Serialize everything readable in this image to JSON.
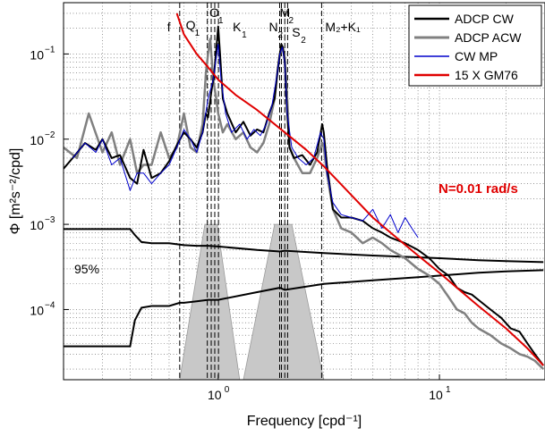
{
  "chart_data": {
    "type": "line",
    "xscale": "log",
    "yscale": "log",
    "xlim": [
      0.2,
      30
    ],
    "ylim": [
      1.5e-05,
      0.4
    ],
    "grid": true,
    "xlabel": "Frequency [cpd⁻¹]",
    "ylabel": "Φ [m²s⁻²/cpd]",
    "x_ticks": [
      {
        "value": 1,
        "label": "10",
        "exp": "0"
      },
      {
        "value": 10,
        "label": "10",
        "exp": "1"
      }
    ],
    "y_ticks": [
      {
        "value": 0.0001,
        "label": "10",
        "exp": "−4"
      },
      {
        "value": 0.001,
        "label": "10",
        "exp": "−3"
      },
      {
        "value": 0.01,
        "label": "10",
        "exp": "−2"
      },
      {
        "value": 0.1,
        "label": "10",
        "exp": "−1"
      }
    ],
    "legend": {
      "placement": "top-right",
      "entries": [
        {
          "name": "ADCP CW",
          "color": "#000000"
        },
        {
          "name": "ADCP ACW",
          "color": "#808080"
        },
        {
          "name": "CW MP",
          "color": "#0000cc"
        },
        {
          "name": "15 X GM76",
          "color": "#e00000"
        }
      ]
    },
    "annotations": [
      {
        "text": "N=0.01 rad/s",
        "color": "#e00000"
      },
      {
        "text": "95%",
        "color": "#000000"
      }
    ],
    "frequency_lines": [
      {
        "label": "f",
        "sub": "",
        "x": 0.67
      },
      {
        "label": "Q",
        "sub": "1",
        "x": 0.893
      },
      {
        "label": "O",
        "sub": "1",
        "x": 0.93
      },
      {
        "label": "",
        "sub": "",
        "x": 0.965
      },
      {
        "label": "K",
        "sub": "1",
        "x": 1.003
      },
      {
        "label": "N",
        "sub": "2",
        "x": 1.896
      },
      {
        "label": "M",
        "sub": "2",
        "x": 1.932
      },
      {
        "label": "S",
        "sub": "2",
        "x": 2.0
      },
      {
        "label": "",
        "sub": "",
        "x": 2.06
      },
      {
        "label": "M₂+K₁",
        "sub": "",
        "x": 2.935
      }
    ],
    "filter_bands": [
      {
        "x": [
          0.67,
          0.87,
          0.99,
          1.25
        ],
        "y": [
          1.5e-05,
          0.001,
          0.001,
          1.5e-05
        ]
      },
      {
        "x": [
          1.3,
          1.8,
          2.15,
          3.0
        ],
        "y": [
          1.5e-05,
          0.001,
          0.001,
          1.5e-05
        ]
      }
    ],
    "series": [
      {
        "name": "ADCP CW",
        "color": "#000000",
        "x": [
          0.2,
          0.22,
          0.25,
          0.28,
          0.3,
          0.33,
          0.36,
          0.4,
          0.43,
          0.46,
          0.5,
          0.55,
          0.6,
          0.65,
          0.7,
          0.75,
          0.8,
          0.85,
          0.88,
          0.9,
          0.93,
          0.96,
          0.98,
          1.0,
          1.02,
          1.05,
          1.1,
          1.2,
          1.3,
          1.4,
          1.5,
          1.6,
          1.7,
          1.8,
          1.85,
          1.9,
          1.93,
          1.96,
          2.0,
          2.05,
          2.1,
          2.2,
          2.4,
          2.6,
          2.8,
          2.95,
          3.0,
          3.1,
          3.3,
          3.6,
          4.0,
          4.5,
          5.0,
          5.5,
          6,
          7,
          8,
          9,
          10,
          11,
          12,
          13,
          14,
          15,
          17,
          19,
          21,
          23,
          25,
          27,
          29.5
        ],
        "y": [
          0.0045,
          0.006,
          0.009,
          0.0075,
          0.01,
          0.006,
          0.0065,
          0.0035,
          0.003,
          0.0075,
          0.0035,
          0.004,
          0.0055,
          0.0085,
          0.012,
          0.01,
          0.008,
          0.012,
          0.02,
          0.018,
          0.035,
          0.06,
          0.11,
          0.21,
          0.1,
          0.03,
          0.02,
          0.012,
          0.016,
          0.011,
          0.013,
          0.012,
          0.02,
          0.03,
          0.06,
          0.1,
          0.13,
          0.12,
          0.08,
          0.02,
          0.008,
          0.006,
          0.0065,
          0.005,
          0.007,
          0.015,
          0.012,
          0.005,
          0.0015,
          0.0012,
          0.0012,
          0.0011,
          0.0009,
          0.0008,
          0.0007,
          0.0006,
          0.0005,
          0.0004,
          0.0003,
          0.00025,
          0.00018,
          0.00016,
          0.00015,
          0.00013,
          0.0001,
          8e-05,
          6e-05,
          5.5e-05,
          4e-05,
          3e-05,
          2.2e-05
        ]
      },
      {
        "name": "ADCP ACW",
        "color": "#808080",
        "x": [
          0.2,
          0.23,
          0.26,
          0.3,
          0.33,
          0.36,
          0.4,
          0.43,
          0.46,
          0.5,
          0.55,
          0.6,
          0.65,
          0.7,
          0.75,
          0.8,
          0.85,
          0.88,
          0.9,
          0.92,
          0.95,
          0.98,
          1.0,
          1.05,
          1.1,
          1.2,
          1.3,
          1.4,
          1.5,
          1.6,
          1.7,
          1.8,
          1.85,
          1.9,
          1.95,
          2.0,
          2.05,
          2.1,
          2.2,
          2.4,
          2.6,
          2.8,
          2.95,
          3.0,
          3.1,
          3.3,
          3.6,
          4.0,
          4.5,
          5.0,
          5.5,
          6,
          7,
          8,
          9,
          10,
          11,
          12,
          13,
          14,
          15,
          17,
          19,
          21,
          23,
          25,
          27,
          29.5
        ],
        "y": [
          0.008,
          0.006,
          0.02,
          0.007,
          0.012,
          0.005,
          0.01,
          0.004,
          0.005,
          0.005,
          0.012,
          0.006,
          0.008,
          0.02,
          0.008,
          0.007,
          0.015,
          0.06,
          0.1,
          0.15,
          0.05,
          0.03,
          0.02,
          0.012,
          0.015,
          0.01,
          0.012,
          0.008,
          0.007,
          0.009,
          0.015,
          0.03,
          0.06,
          0.1,
          0.12,
          0.09,
          0.03,
          0.008,
          0.006,
          0.004,
          0.004,
          0.006,
          0.009,
          0.008,
          0.004,
          0.0015,
          0.0009,
          0.0008,
          0.0006,
          0.0007,
          0.0006,
          0.0005,
          0.0004,
          0.0003,
          0.00025,
          0.0002,
          0.00014,
          0.0001,
          9e-05,
          7e-05,
          6e-05,
          5e-05,
          4e-05,
          3.5e-05,
          3e-05,
          2.8e-05,
          2.5e-05,
          2e-05
        ]
      },
      {
        "name": "CW MP",
        "color": "#0000cc",
        "x": [
          0.22,
          0.25,
          0.28,
          0.3,
          0.33,
          0.36,
          0.4,
          0.43,
          0.46,
          0.5,
          0.55,
          0.6,
          0.65,
          0.7,
          0.75,
          0.8,
          0.85,
          0.9,
          0.95,
          0.98,
          1.0,
          1.03,
          1.08,
          1.15,
          1.25,
          1.35,
          1.45,
          1.55,
          1.65,
          1.75,
          1.85,
          1.9,
          1.95,
          2.0,
          2.05,
          2.15,
          2.3,
          2.5,
          2.7,
          2.9,
          3.0,
          3.1,
          3.3,
          3.6,
          4.0,
          4.5,
          5.0,
          5.5,
          6,
          6.5,
          7,
          7.5,
          8
        ],
        "y": [
          0.006,
          0.009,
          0.007,
          0.01,
          0.005,
          0.006,
          0.0025,
          0.004,
          0.004,
          0.003,
          0.004,
          0.005,
          0.008,
          0.013,
          0.01,
          0.007,
          0.012,
          0.03,
          0.05,
          0.09,
          0.13,
          0.05,
          0.02,
          0.012,
          0.015,
          0.01,
          0.013,
          0.011,
          0.015,
          0.025,
          0.06,
          0.1,
          0.12,
          0.08,
          0.02,
          0.008,
          0.006,
          0.005,
          0.006,
          0.012,
          0.01,
          0.004,
          0.0018,
          0.0013,
          0.0012,
          0.0011,
          0.0015,
          0.0009,
          0.0013,
          0.0008,
          0.0012,
          0.0009,
          0.0007
        ]
      },
      {
        "name": "15 X GM76",
        "color": "#e00000",
        "x": [
          0.65,
          0.7,
          0.8,
          0.9,
          1.0,
          1.2,
          1.5,
          2.0,
          2.5,
          3.0,
          4.0,
          5.0,
          6.0,
          8.0,
          10,
          12,
          15,
          20,
          25,
          29.5
        ],
        "y": [
          0.3,
          0.17,
          0.1,
          0.07,
          0.05,
          0.033,
          0.022,
          0.012,
          0.0075,
          0.0048,
          0.0022,
          0.0012,
          0.0008,
          0.00043,
          0.00027,
          0.00018,
          0.00011,
          6e-05,
          3.5e-05,
          2.2e-05
        ]
      }
    ],
    "confidence_curves": [
      {
        "x": [
          0.2,
          0.4,
          0.42,
          0.45,
          0.5,
          0.6,
          0.67,
          0.7,
          0.8,
          0.9,
          1.0,
          1.5,
          1.9,
          2.0,
          3.0,
          5.0,
          8.0,
          10,
          15,
          20,
          29.5
        ],
        "y": [
          0.00088,
          0.00088,
          0.00075,
          0.00062,
          0.0006,
          0.0006,
          0.00058,
          0.00057,
          0.00056,
          0.00056,
          0.00055,
          0.0005,
          0.00048,
          0.00049,
          0.00046,
          0.00043,
          0.00041,
          0.0004,
          0.00038,
          0.00037,
          0.00036
        ]
      },
      {
        "x": [
          0.2,
          0.4,
          0.42,
          0.45,
          0.5,
          0.6,
          0.67,
          0.7,
          0.8,
          0.9,
          1.0,
          1.5,
          1.9,
          2.0,
          3.0,
          5.0,
          8.0,
          10,
          15,
          20,
          29.5
        ],
        "y": [
          3.7e-05,
          3.7e-05,
          7.5e-05,
          0.000105,
          0.00011,
          0.00011,
          0.00012,
          0.00012,
          0.000125,
          0.00013,
          0.00013,
          0.00016,
          0.00018,
          0.00017,
          0.0002,
          0.00022,
          0.00024,
          0.00025,
          0.00027,
          0.00028,
          0.00029
        ]
      }
    ]
  }
}
